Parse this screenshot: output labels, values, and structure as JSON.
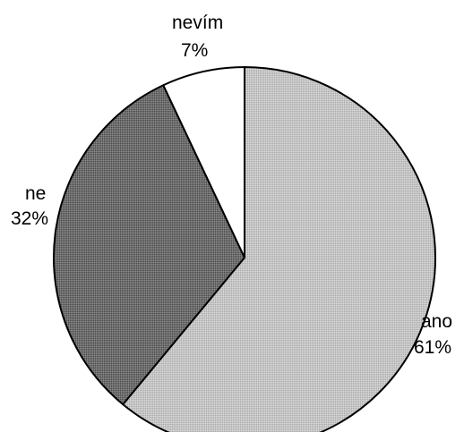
{
  "chart_data": {
    "type": "pie",
    "slices": [
      {
        "label": "ano",
        "percent_label": "61%",
        "value": 61,
        "fill": "#bdbdbd"
      },
      {
        "label": "ne",
        "percent_label": "32%",
        "value": 32,
        "fill": "#6a6a6a"
      },
      {
        "label": "nevím",
        "percent_label": "7%",
        "value": 7,
        "fill": "#ffffff"
      }
    ],
    "start": "12 o'clock",
    "direction": "clockwise",
    "legend": "none",
    "stroke_color": "#000000"
  }
}
